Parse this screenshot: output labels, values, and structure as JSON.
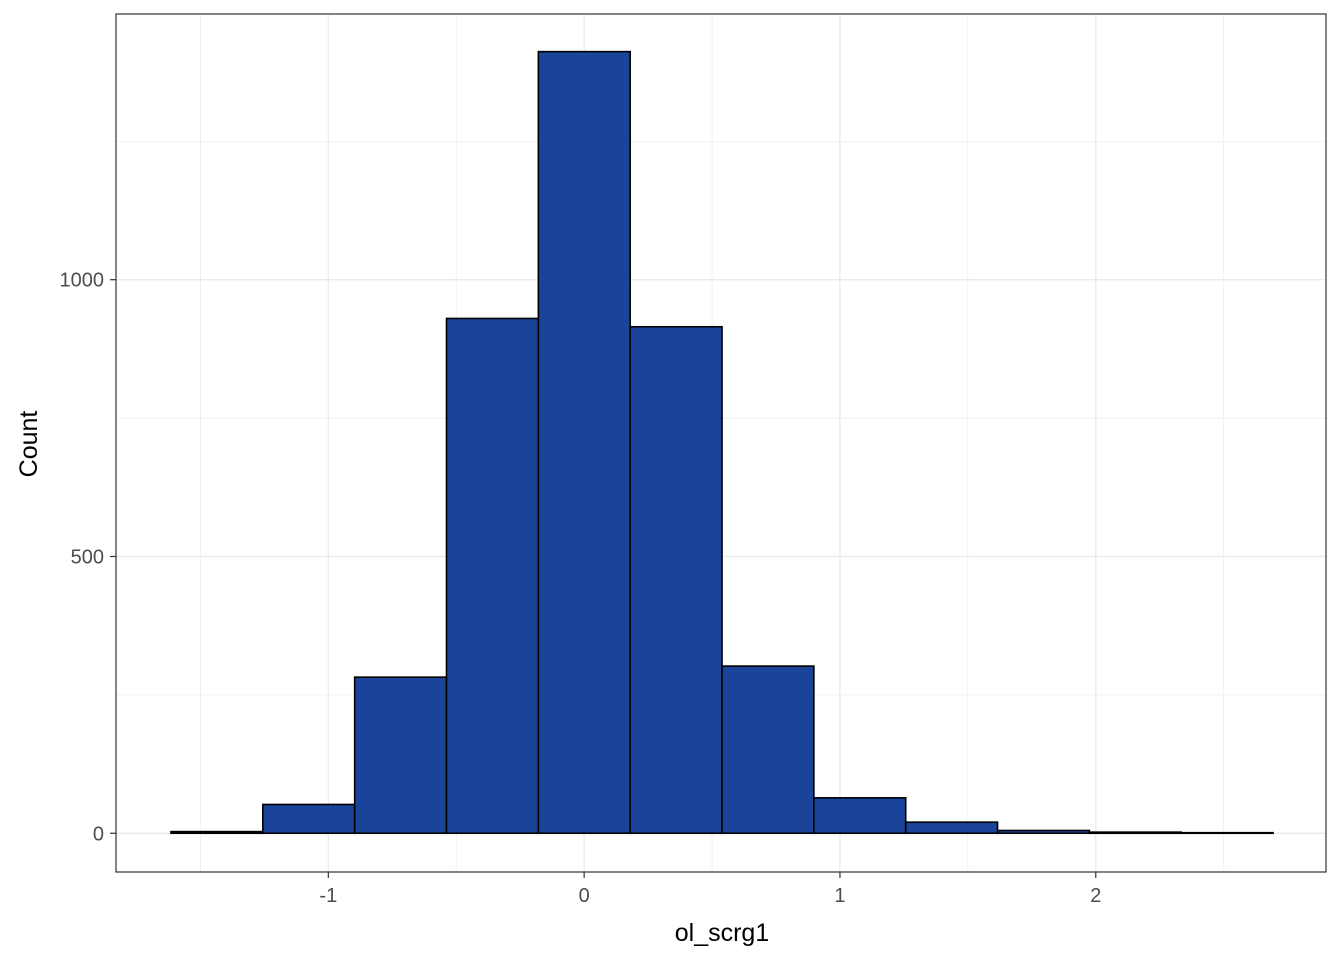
{
  "chart_data": {
    "type": "bar",
    "subtype": "histogram",
    "xlabel": "ol_scrg1",
    "ylabel": "Count",
    "bins": [
      {
        "x0": -1.615,
        "x1": -1.256,
        "count": 3
      },
      {
        "x0": -1.256,
        "x1": -0.897,
        "count": 52
      },
      {
        "x0": -0.897,
        "x1": -0.538,
        "count": 282
      },
      {
        "x0": -0.538,
        "x1": -0.179,
        "count": 930
      },
      {
        "x0": -0.179,
        "x1": 0.18,
        "count": 1412
      },
      {
        "x0": 0.18,
        "x1": 0.539,
        "count": 915
      },
      {
        "x0": 0.539,
        "x1": 0.898,
        "count": 302
      },
      {
        "x0": 0.898,
        "x1": 1.257,
        "count": 64
      },
      {
        "x0": 1.257,
        "x1": 1.616,
        "count": 20
      },
      {
        "x0": 1.616,
        "x1": 1.975,
        "count": 5
      },
      {
        "x0": 1.975,
        "x1": 2.334,
        "count": 2
      },
      {
        "x0": 2.334,
        "x1": 2.693,
        "count": 1
      }
    ],
    "xlim": [
      -1.83,
      2.9
    ],
    "ylim": [
      -70,
      1480
    ],
    "x_ticks": [
      -1,
      0,
      1,
      2
    ],
    "x_tick_labels": [
      "-1",
      "0",
      "1",
      "2"
    ],
    "y_ticks": [
      0,
      500,
      1000
    ],
    "y_tick_labels": [
      "0",
      "500",
      "1000"
    ],
    "grid": true,
    "bar_fill": "#1a4499",
    "bar_stroke": "#000000",
    "grid_color": "#ebebeb",
    "panel_border_color": "#333333"
  }
}
